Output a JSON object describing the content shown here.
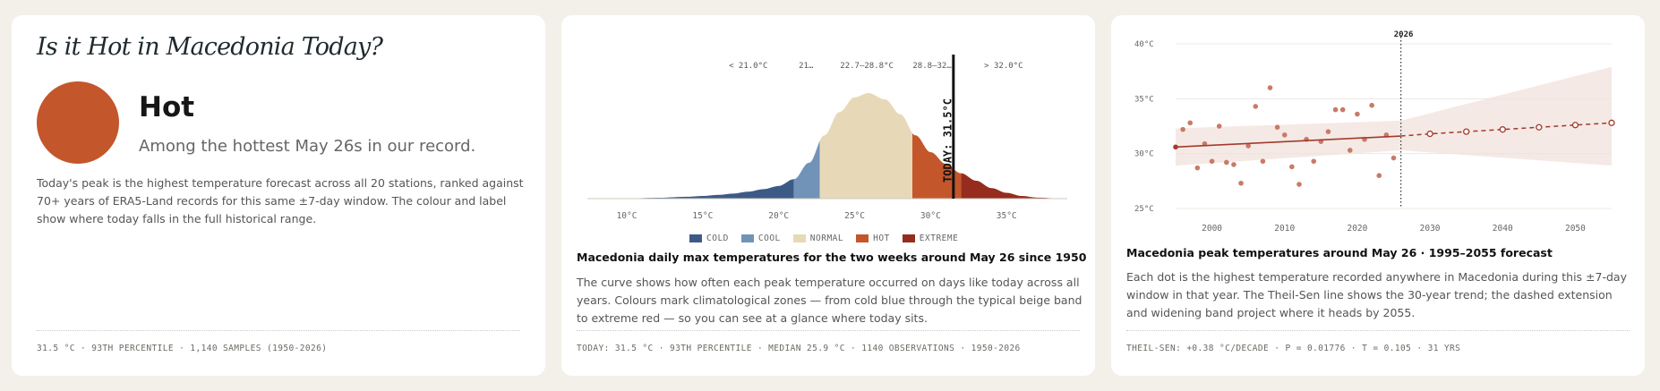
{
  "card1": {
    "title": "Is it Hot in Macedonia Today?",
    "verdict": "Hot",
    "subtitle": "Among the hottest May 26s in our record.",
    "body": "Today's peak is the highest temperature forecast across all 20 stations, ranked against 70+ years of ERA5-Land records for this same ±7-day window. The colour and label show where today falls in the full historical range.",
    "footer": "31.5 °C · 93TH PERCENTILE · 1,140 SAMPLES (1950-2026)",
    "dot_color": "#c4562b"
  },
  "card2": {
    "title": "Macedonia daily max temperatures for the two weeks around May 26 since 1950",
    "body": "The curve shows how often each peak temperature occurred on days like today across all years. Colours mark climatological zones — from cold blue through the typical beige band to extreme red — so you can see at a glance where today sits.",
    "footer": "TODAY: 31.5 °C · 93TH PERCENTILE · MEDIAN 25.9 °C · 1140 OBSERVATIONS · 1950-2026"
  },
  "card3": {
    "title": "Macedonia peak temperatures around May 26 · 1995–2055 forecast",
    "body": "Each dot is the highest temperature recorded anywhere in Macedonia during this ±7-day window in that year. The Theil-Sen line shows the 30-year trend; the dashed extension and widening band project where it heads by 2055.",
    "footer": "THEIL-SEN: +0.38 °C/DECADE · P = 0.01776 · T = 0.105 · 31 YRS"
  },
  "chart_data": [
    {
      "type": "area",
      "x_unit": "°C",
      "xlim": [
        7.7,
        38.7
      ],
      "x_ticks": [
        10,
        15,
        20,
        25,
        30,
        35
      ],
      "x_tick_labels": [
        "10°C",
        "15°C",
        "20°C",
        "25°C",
        "30°C",
        "35°C"
      ],
      "density_x": [
        7.7,
        10,
        12,
        14,
        15,
        16,
        17,
        18,
        19,
        20,
        21,
        22,
        23,
        24,
        25,
        25.9,
        27,
        28,
        29,
        30,
        31,
        32,
        33,
        34,
        35,
        36,
        37,
        38.7
      ],
      "density_y": [
        0,
        0.003,
        0.008,
        0.018,
        0.025,
        0.035,
        0.048,
        0.066,
        0.09,
        0.12,
        0.185,
        0.34,
        0.6,
        0.82,
        0.96,
        1.0,
        0.94,
        0.8,
        0.6,
        0.44,
        0.33,
        0.24,
        0.17,
        0.1,
        0.055,
        0.025,
        0.01,
        0
      ],
      "zones": [
        {
          "name": "COLD",
          "from": 7.7,
          "to": 21.0,
          "color": "#3d5a87",
          "label": "< 21.0°C"
        },
        {
          "name": "COOL",
          "from": 21.0,
          "to": 22.7,
          "color": "#7293b8",
          "label": "21…"
        },
        {
          "name": "NORMAL",
          "from": 22.7,
          "to": 28.8,
          "color": "#e7d9b8",
          "label": "22.7–28.8°C"
        },
        {
          "name": "HOT",
          "from": 28.8,
          "to": 32.0,
          "color": "#c4562b",
          "label": "28.8–32…"
        },
        {
          "name": "EXTREME",
          "from": 32.0,
          "to": 38.7,
          "color": "#962c1d",
          "label": "> 32.0°C"
        }
      ],
      "today": {
        "value": 31.5,
        "label": "TODAY: 31.5°C"
      },
      "legend": [
        "COLD",
        "COOL",
        "NORMAL",
        "HOT",
        "EXTREME"
      ]
    },
    {
      "type": "scatter",
      "xlim": [
        1995,
        2055
      ],
      "ylim": [
        25,
        40
      ],
      "x_ticks": [
        2000,
        2010,
        2020,
        2030,
        2040,
        2050
      ],
      "x_tick_labels": [
        "2000",
        "2010",
        "2020",
        "2030",
        "2040",
        "2050"
      ],
      "y_ticks": [
        25,
        30,
        35,
        40
      ],
      "y_tick_labels": [
        "25°C",
        "30°C",
        "35°C",
        "40°C"
      ],
      "points": [
        [
          1996,
          32.2
        ],
        [
          1997,
          32.8
        ],
        [
          1998,
          28.7
        ],
        [
          1999,
          30.9
        ],
        [
          2000,
          29.3
        ],
        [
          2001,
          32.5
        ],
        [
          2002,
          29.2
        ],
        [
          2003,
          29.0
        ],
        [
          2004,
          27.3
        ],
        [
          2005,
          30.7
        ],
        [
          2006,
          34.3
        ],
        [
          2007,
          29.3
        ],
        [
          2008,
          36.0
        ],
        [
          2009,
          32.4
        ],
        [
          2010,
          31.7
        ],
        [
          2011,
          28.8
        ],
        [
          2012,
          27.2
        ],
        [
          2013,
          31.3
        ],
        [
          2014,
          29.3
        ],
        [
          2015,
          31.1
        ],
        [
          2016,
          32.0
        ],
        [
          2017,
          34.0
        ],
        [
          2018,
          34.0
        ],
        [
          2019,
          30.3
        ],
        [
          2020,
          33.6
        ],
        [
          2021,
          31.3
        ],
        [
          2022,
          34.4
        ],
        [
          2023,
          28.0
        ],
        [
          2024,
          31.7
        ],
        [
          2025,
          29.6
        ]
      ],
      "trend": {
        "x0": 1995,
        "y0": 30.6,
        "x1": 2026,
        "y1": 31.6
      },
      "forecast": [
        [
          2026,
          31.6
        ],
        [
          2030,
          31.8
        ],
        [
          2035,
          32.0
        ],
        [
          2040,
          32.2
        ],
        [
          2045,
          32.4
        ],
        [
          2050,
          32.6
        ],
        [
          2055,
          32.8
        ]
      ],
      "band": {
        "start": [
          1995,
          28.9,
          32.3
        ],
        "mid": [
          2026,
          30.3,
          33.0
        ],
        "end": [
          2055,
          28.9,
          37.9
        ]
      },
      "marker": {
        "x": 2026,
        "label": "2026"
      },
      "grid": true
    }
  ]
}
